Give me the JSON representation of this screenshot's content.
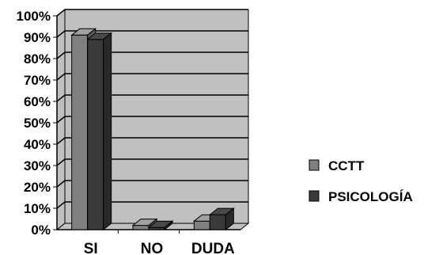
{
  "chart_data": {
    "type": "bar",
    "title": "",
    "xlabel": "",
    "ylabel": "",
    "categories": [
      "SI",
      "NO",
      "DUDA"
    ],
    "series": [
      {
        "name": "CCTT",
        "values": [
          91,
          2,
          4
        ],
        "color": "#808080"
      },
      {
        "name": "PSICOLOGÍA",
        "values": [
          89,
          1,
          7
        ],
        "color": "#3a3a3a"
      }
    ],
    "ylim": [
      0,
      100
    ],
    "yticks": [
      "0%",
      "10%",
      "20%",
      "30%",
      "40%",
      "50%",
      "60%",
      "70%",
      "80%",
      "90%",
      "100%"
    ],
    "grid": true,
    "legend_position": "right",
    "colors": {
      "plot_background": "#c0c0c0",
      "gridline": "#000000"
    }
  }
}
